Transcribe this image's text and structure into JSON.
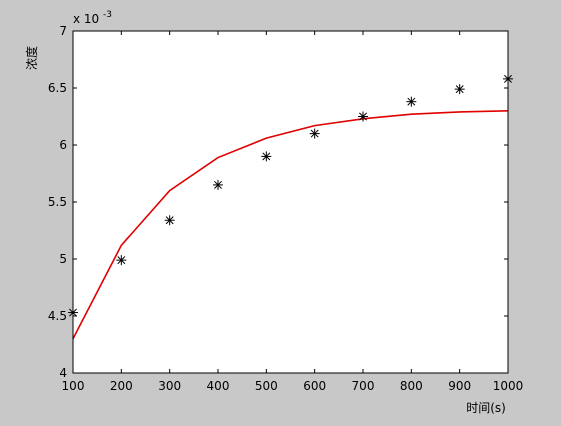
{
  "chart_data": {
    "type": "line+scatter",
    "xlabel": "时间(s)",
    "ylabel": "浓度",
    "y_exponent_label": "x 10",
    "y_exponent_power": "-3",
    "xlim": [
      100,
      1000
    ],
    "ylim": [
      4,
      7
    ],
    "x_ticks": [
      "100",
      "200",
      "300",
      "400",
      "500",
      "600",
      "700",
      "800",
      "900",
      "1000"
    ],
    "y_ticks": [
      "4",
      "4.5",
      "5",
      "5.5",
      "6",
      "6.5",
      "7"
    ],
    "grid": false,
    "legend": "none",
    "colors": {
      "figure_background": "#c8c8c8",
      "axes_background": "#ffffff",
      "fit_line": "#e00000",
      "markers": "#000000"
    },
    "series": [
      {
        "kind": "line",
        "x": [
          100,
          200,
          300,
          400,
          500,
          600,
          700,
          800,
          900,
          1000
        ],
        "y": [
          4.3,
          5.12,
          5.6,
          5.89,
          6.06,
          6.17,
          6.23,
          6.27,
          6.29,
          6.3
        ]
      },
      {
        "kind": "scatter",
        "marker": "asterisk",
        "x": [
          100,
          200,
          300,
          400,
          500,
          600,
          700,
          800,
          900,
          1000
        ],
        "y": [
          4.53,
          4.99,
          5.34,
          5.65,
          5.9,
          6.1,
          6.25,
          6.38,
          6.49,
          6.58
        ]
      }
    ]
  }
}
